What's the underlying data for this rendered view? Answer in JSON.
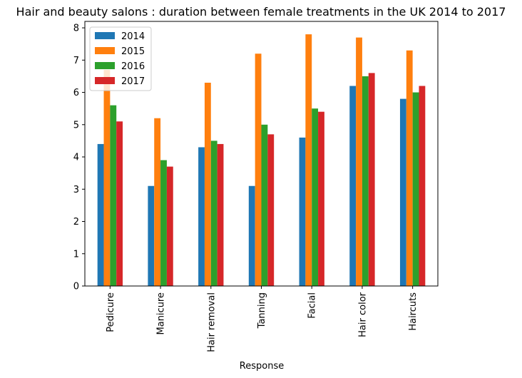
{
  "chart_data": {
    "type": "bar",
    "title": "Hair and beauty salons : duration between female treatments in the UK 2014 to 2017",
    "xlabel": "Response",
    "ylabel": "",
    "categories": [
      "Pedicure",
      "Manicure",
      "Hair removal",
      "Tanning",
      "Facial",
      "Hair color",
      "Haircuts"
    ],
    "series": [
      {
        "name": "2014",
        "color": "#1f77b4",
        "values": [
          4.4,
          3.1,
          4.3,
          3.1,
          4.6,
          6.2,
          5.8
        ]
      },
      {
        "name": "2015",
        "color": "#ff7f0e",
        "values": [
          6.7,
          5.2,
          6.3,
          7.2,
          7.8,
          7.7,
          7.3
        ]
      },
      {
        "name": "2016",
        "color": "#2ca02c",
        "values": [
          5.6,
          3.9,
          4.5,
          5.0,
          5.5,
          6.5,
          6.0
        ]
      },
      {
        "name": "2017",
        "color": "#d62728",
        "values": [
          5.1,
          3.7,
          4.4,
          4.7,
          5.4,
          6.6,
          6.2
        ]
      }
    ],
    "ylim": [
      0,
      8.2
    ],
    "yticks": [
      0,
      1,
      2,
      3,
      4,
      5,
      6,
      7,
      8
    ],
    "grid": false,
    "legend_position": "top-left"
  }
}
